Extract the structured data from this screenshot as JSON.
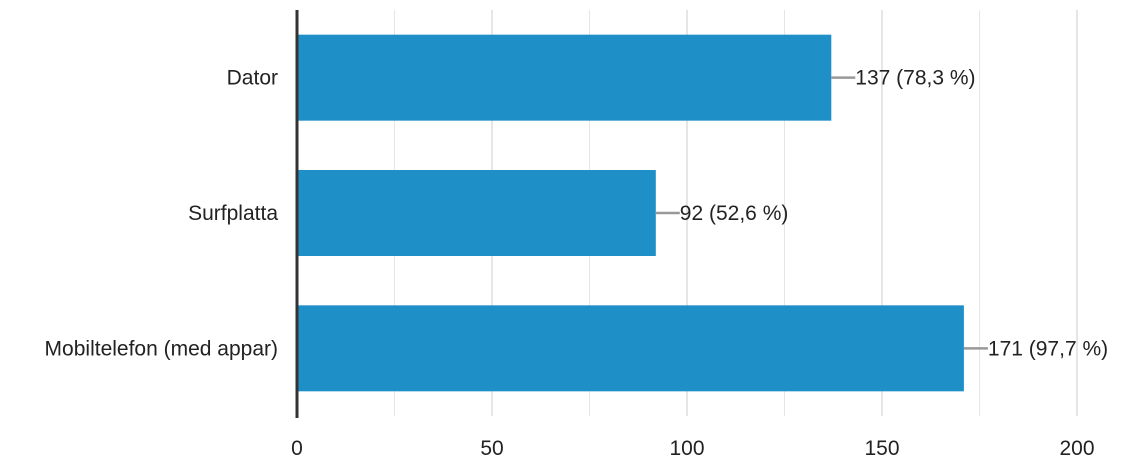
{
  "chart_data": {
    "type": "bar",
    "orientation": "horizontal",
    "categories": [
      "Dator",
      "Surfplatta",
      "Mobiltelefon (med appar)"
    ],
    "values": [
      137,
      92,
      171
    ],
    "value_labels": [
      "137 (78,3 %)",
      "92 (52,6 %)",
      "171 (97,7 %)"
    ],
    "xlim": [
      0,
      200
    ],
    "x_ticks": [
      0,
      50,
      100,
      150,
      200
    ],
    "grid": true,
    "colors": {
      "bar": "#1f8fc7",
      "grid": "#e6e6e6",
      "axis": "#333333",
      "leader": "#999999"
    }
  }
}
